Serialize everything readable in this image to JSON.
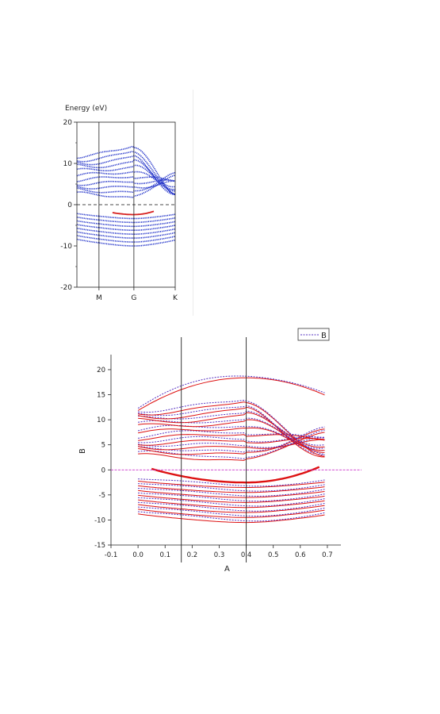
{
  "chart_data": [
    {
      "type": "line",
      "ylabel": "Energy (eV)",
      "ylim": [
        -20,
        20
      ],
      "yticks": [
        "20",
        "10",
        "0",
        "-10",
        "-20"
      ],
      "kpath": [
        {
          "label": "",
          "x": 0.0
        },
        {
          "label": "M",
          "x": 0.155
        },
        {
          "label": "G",
          "x": 0.4
        },
        {
          "label": "K",
          "x": 0.69
        }
      ],
      "fermi_level": 0,
      "colors": {
        "bands": "#1e2fc8",
        "highlight": "#d62020"
      }
    },
    {
      "type": "line",
      "xlabel": "A",
      "ylabel": "B",
      "xlim": [
        -0.1,
        0.75
      ],
      "ylim": [
        -15,
        23
      ],
      "xticks": [
        "-0.1",
        "0.0",
        "0.1",
        "0.2",
        "0.3",
        "0.4",
        "0.5",
        "0.6",
        "0.7"
      ],
      "yticks": [
        "20",
        "15",
        "10",
        "5",
        "0",
        "-5",
        "-10",
        "-15"
      ],
      "vertical_lines": [
        0.16,
        0.4
      ],
      "legend": {
        "position": "top-right",
        "entries": [
          "B"
        ]
      },
      "colors": {
        "series_a": "#dd1111",
        "series_b": "#5530c0",
        "zero_line": "#cc33cc"
      }
    }
  ]
}
